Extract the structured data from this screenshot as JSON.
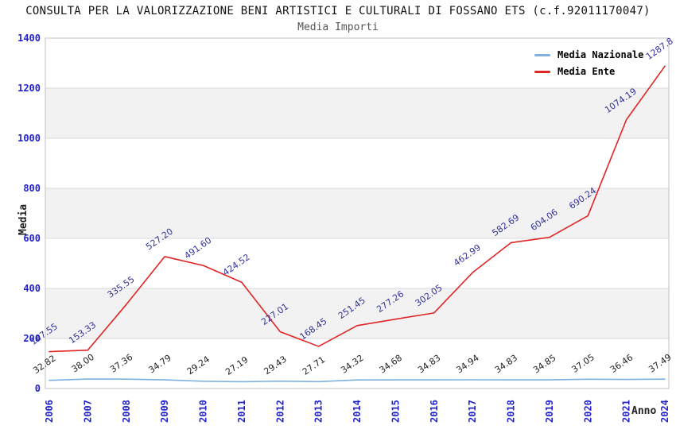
{
  "header": {
    "title": "CONSULTA PER LA VALORIZZAZIONE BENI ARTISTICI E CULTURALI DI FOSSANO ETS (c.f.92011170047)",
    "subtitle": "Media Importi"
  },
  "colors": {
    "tick": "#2222cc",
    "band": "#f2f2f2",
    "grid": "#d9d9d9",
    "border": "#c0c0c0"
  },
  "chart_data": {
    "type": "line",
    "title": "CONSULTA PER LA VALORIZZAZIONE BENI ARTISTICI E CULTURALI DI FOSSANO ETS (c.f.92011170047)",
    "subtitle": "Media Importi",
    "xlabel": "Anno",
    "ylabel": "Media",
    "x_categories": [
      "2006",
      "2007",
      "2008",
      "2009",
      "2010",
      "2011",
      "2012",
      "2013",
      "2014",
      "2015",
      "2016",
      "2017",
      "2018",
      "2019",
      "2020",
      "2021",
      "2024"
    ],
    "ylim": [
      0,
      1400
    ],
    "yticks": [
      0,
      200,
      400,
      600,
      800,
      1000,
      1200,
      1400
    ],
    "grid": "horizontal-bands",
    "legend_position": "top-right",
    "series": [
      {
        "name": "Media Nazionale",
        "color": "#7fb2e0",
        "label_color": "#222222",
        "values": [
          32.82,
          38.0,
          37.36,
          34.79,
          29.24,
          27.19,
          29.43,
          27.71,
          34.32,
          34.68,
          34.83,
          34.94,
          34.83,
          34.85,
          37.05,
          36.46,
          37.49
        ],
        "labels": [
          "32.82",
          "38.00",
          "37.36",
          "34.79",
          "29.24",
          "27.19",
          "29.43",
          "27.71",
          "34.32",
          "34.68",
          "34.83",
          "34.94",
          "34.83",
          "34.85",
          "37.05",
          "36.46",
          "37.49"
        ]
      },
      {
        "name": "Media Ente",
        "color": "#e02525",
        "label_color": "#333399",
        "values": [
          147.55,
          153.33,
          335.55,
          527.2,
          491.6,
          424.52,
          227.01,
          168.45,
          251.45,
          277.26,
          302.05,
          462.99,
          582.69,
          604.06,
          690.24,
          1074.19,
          1287.8
        ],
        "labels": [
          "147.55",
          "153.33",
          "335.55",
          "527.20",
          "491.60",
          "424.52",
          "227.01",
          "168.45",
          "251.45",
          "277.26",
          "302.05",
          "462.99",
          "582.69",
          "604.06",
          "690.24",
          "1074.19",
          "1287.8"
        ]
      }
    ]
  }
}
